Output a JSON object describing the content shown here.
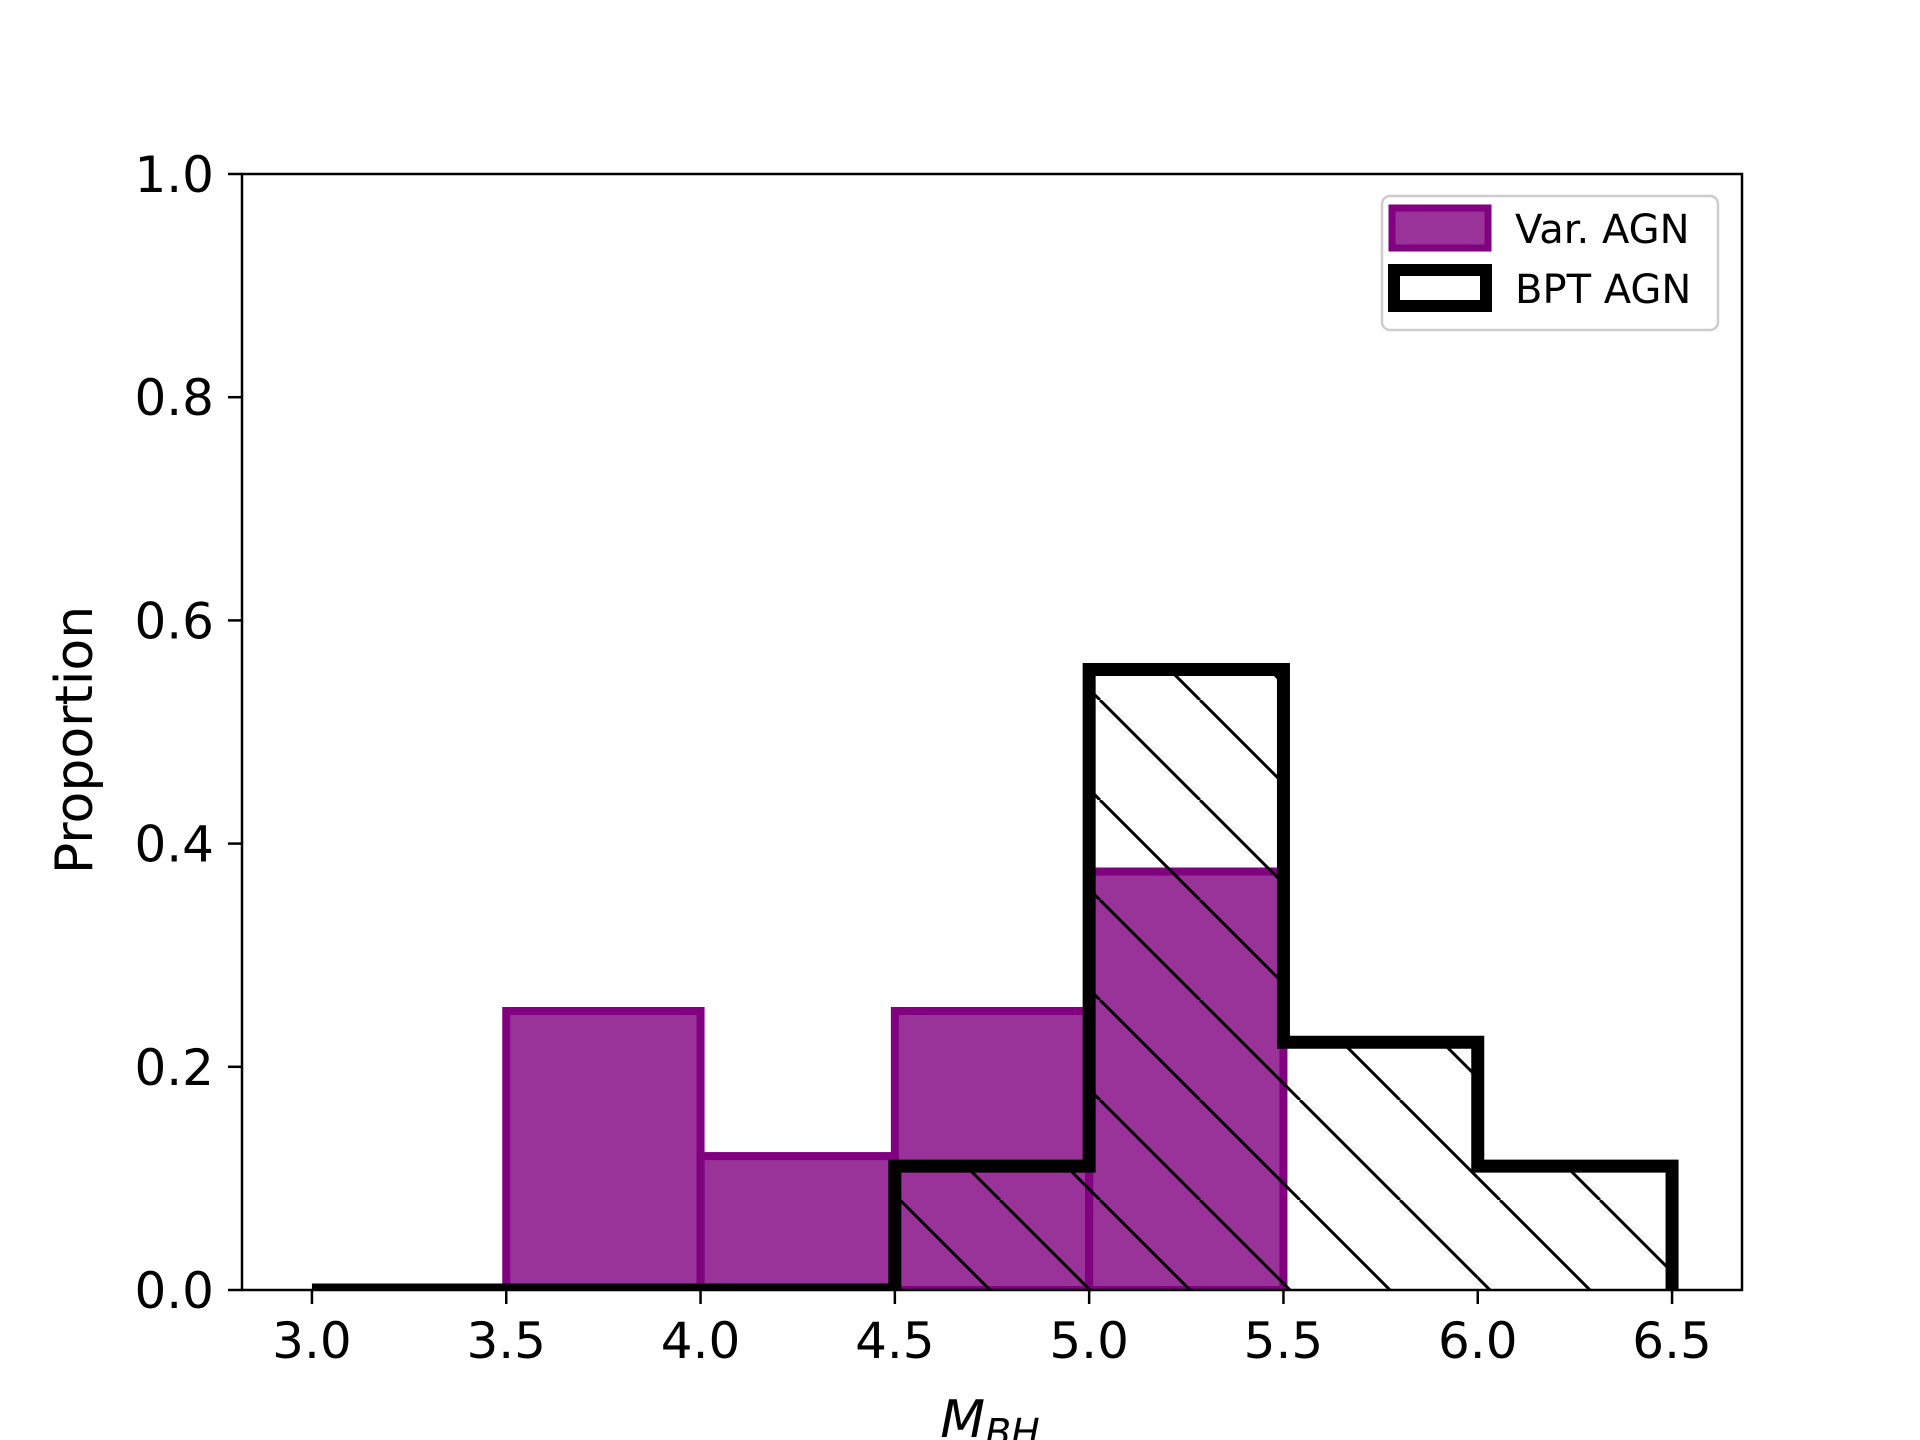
{
  "chart_data": {
    "type": "bar",
    "xlabel": "M",
    "xlabel_subscript": "BH",
    "ylabel": "Proportion",
    "xlim": [
      2.82,
      6.68
    ],
    "ylim": [
      0.0,
      1.0
    ],
    "xticks": [
      "3.0",
      "3.5",
      "4.0",
      "4.5",
      "5.0",
      "5.5",
      "6.0",
      "6.5"
    ],
    "yticks": [
      "0.0",
      "0.2",
      "0.4",
      "0.6",
      "0.8",
      "1.0"
    ],
    "bin_edges": [
      3.0,
      3.5,
      4.0,
      4.5,
      5.0,
      5.5,
      6.0,
      6.5
    ],
    "grid": false,
    "legend_position": "top-right",
    "series": [
      {
        "name": "Var. AGN",
        "style": "filled",
        "color": "#800080",
        "values": [
          0.0,
          0.25,
          0.12,
          0.25,
          0.375,
          0.0,
          0.0
        ]
      },
      {
        "name": "BPT AGN",
        "style": "step-hatched",
        "color": "#000000",
        "values": [
          0.0,
          0.0,
          0.0,
          0.111,
          0.556,
          0.222,
          0.111
        ]
      }
    ]
  }
}
